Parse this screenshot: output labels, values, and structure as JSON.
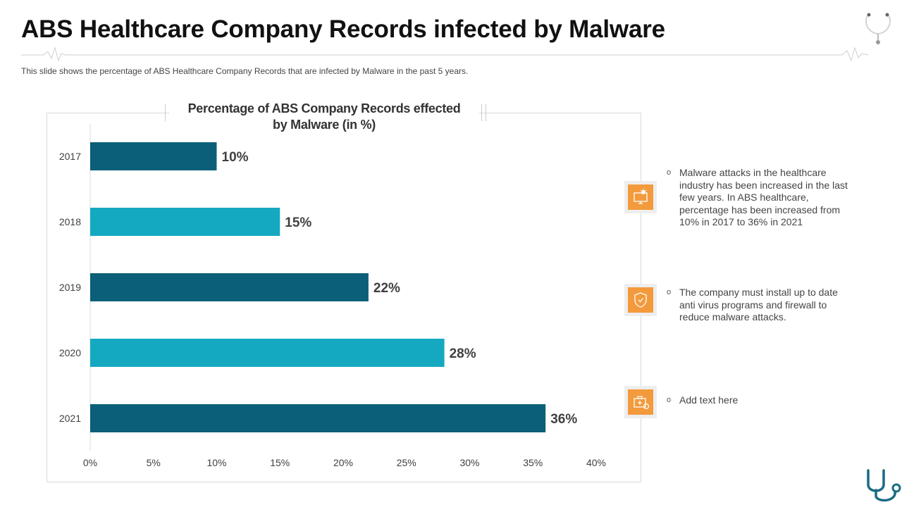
{
  "page": {
    "title": "ABS Healthcare Company Records infected by Malware",
    "subtitle": "This slide shows the percentage of ABS Healthcare Company Records that are infected by Malware in the past 5 years."
  },
  "chart_data": {
    "type": "bar",
    "orientation": "horizontal",
    "title": "Percentage of ABS Company Records effected by Malware (in %)",
    "title_lines": [
      "Percentage of ABS Company Records effected",
      "by Malware (in %)"
    ],
    "categories": [
      "2017",
      "2018",
      "2019",
      "2020",
      "2021"
    ],
    "values": [
      10,
      15,
      22,
      28,
      36
    ],
    "value_labels": [
      "10%",
      "15%",
      "22%",
      "28%",
      "36%"
    ],
    "bar_colors": [
      "#0b5f78",
      "#14a9c0",
      "#0b5f78",
      "#14a9c0",
      "#0b5f78"
    ],
    "xlim": [
      0,
      40
    ],
    "xticks": [
      0,
      5,
      10,
      15,
      20,
      25,
      30,
      35,
      40
    ],
    "xtick_labels": [
      "0%",
      "5%",
      "10%",
      "15%",
      "20%",
      "25%",
      "30%",
      "35%",
      "40%"
    ],
    "xlabel": "",
    "ylabel": "",
    "grid": false,
    "legend": "none"
  },
  "notes": [
    {
      "icon": "malware-computer-icon",
      "text": "Malware attacks in the healthcare industry has been increased in the last few years. In ABS healthcare, percentage has been increased from 10% in 2017 to 36% in 2021"
    },
    {
      "icon": "shield-check-icon",
      "text": "The company must install up to date anti virus programs and firewall to reduce malware attacks."
    },
    {
      "icon": "medical-kit-icon",
      "text": "Add text here"
    }
  ],
  "colors": {
    "accent_orange": "#f39a3c",
    "bar_dark": "#0b5f78",
    "bar_light": "#14a9c0",
    "stethoscope": "#1a6b84"
  },
  "bullet_symbol": "o"
}
